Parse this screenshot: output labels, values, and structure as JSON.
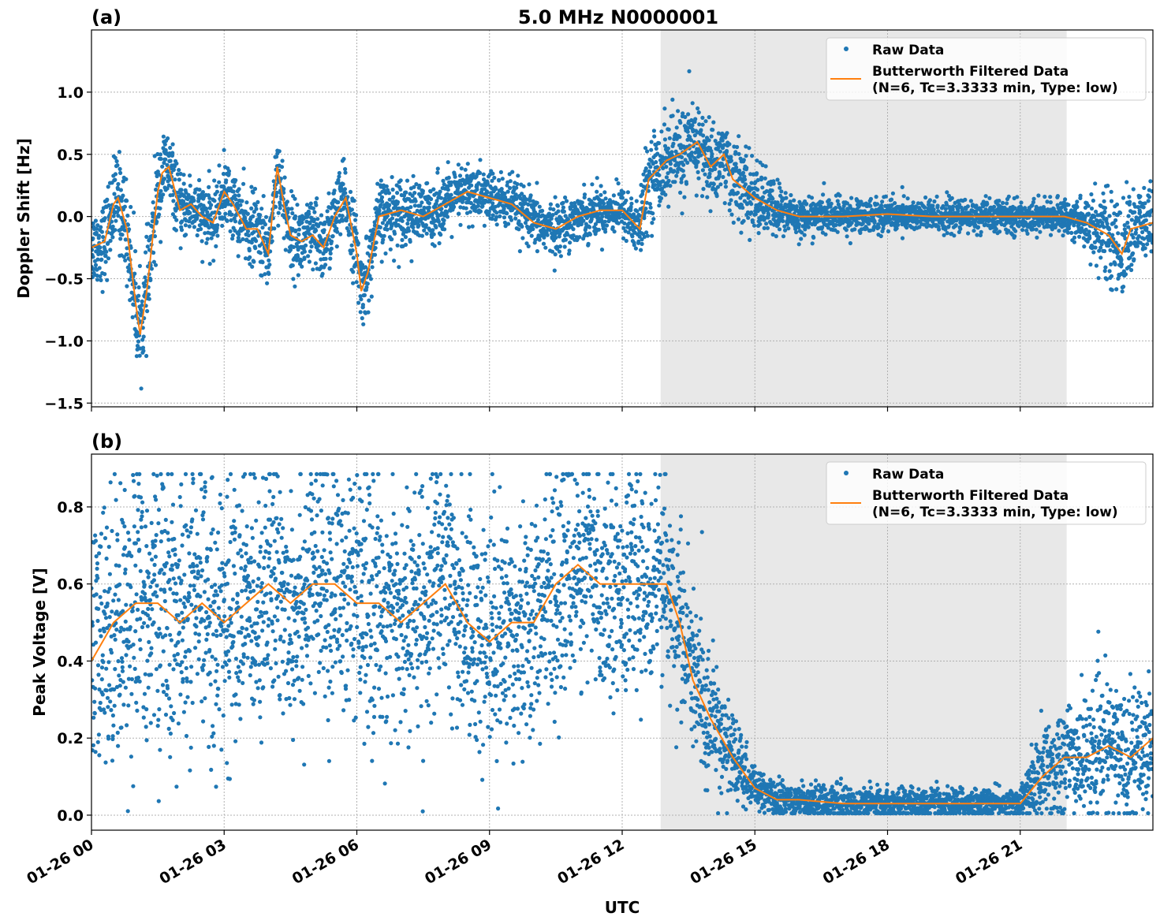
{
  "title": "5.0 MHz N0000001",
  "xlabel": "UTC",
  "x_ticks": [
    "01-26 00",
    "01-26 03",
    "01-26 06",
    "01-26 09",
    "01-26 12",
    "01-26 15",
    "01-26 18",
    "01-26 21"
  ],
  "x_tick_hours": [
    0,
    3,
    6,
    9,
    12,
    15,
    18,
    21
  ],
  "xlim_hours": [
    0,
    24
  ],
  "shaded_region_hours": [
    12.87,
    22.05
  ],
  "colors": {
    "raw": "#1f77b4",
    "filtered": "#ff7f0e",
    "shade": "#e8e8e8"
  },
  "chart_data": [
    {
      "type": "scatter+line",
      "panel_label": "(a)",
      "ylabel": "Doppler Shift [Hz]",
      "ylim": [
        -1.53,
        1.5
      ],
      "y_ticks": [
        1.0,
        0.5,
        0.0,
        -0.5,
        -1.0,
        -1.5
      ],
      "y_tick_labels": [
        "1.0",
        "0.5",
        "0.0",
        "−0.5",
        "−1.0",
        "−1.5"
      ],
      "grid": true,
      "legend": {
        "placement": "top-right",
        "entries": [
          "Raw Data",
          "Butterworth Filtered Data",
          "(N=6, Tc=3.3333 min, Type: low)"
        ]
      },
      "filtered": {
        "x_hours": [
          0,
          0.3,
          0.5,
          0.6,
          0.8,
          1.0,
          1.1,
          1.25,
          1.5,
          1.6,
          1.75,
          2.0,
          2.25,
          2.5,
          2.75,
          3.0,
          3.2,
          3.5,
          3.75,
          4.0,
          4.2,
          4.35,
          4.5,
          4.75,
          5.0,
          5.25,
          5.5,
          5.75,
          6.0,
          6.1,
          6.25,
          6.5,
          7.0,
          7.5,
          8.0,
          8.5,
          9.0,
          9.5,
          10.0,
          10.5,
          11.0,
          11.5,
          12.0,
          12.4,
          12.6,
          13.0,
          13.3,
          13.7,
          14.0,
          14.3,
          14.5,
          15.0,
          15.5,
          16,
          17,
          18,
          19,
          20,
          21,
          22,
          22.5,
          23,
          23.3,
          23.5,
          24
        ],
        "y": [
          -0.25,
          -0.2,
          0.1,
          0.15,
          -0.1,
          -0.7,
          -0.95,
          -0.6,
          0.2,
          0.35,
          0.4,
          0.05,
          0.1,
          0.0,
          -0.05,
          0.2,
          0.1,
          -0.1,
          -0.1,
          -0.3,
          0.4,
          0.1,
          -0.15,
          -0.2,
          -0.15,
          -0.25,
          0.0,
          0.15,
          -0.3,
          -0.6,
          -0.45,
          0.0,
          0.05,
          0.0,
          0.1,
          0.2,
          0.15,
          0.1,
          -0.05,
          -0.1,
          0.0,
          0.05,
          0.05,
          -0.1,
          0.3,
          0.45,
          0.5,
          0.6,
          0.4,
          0.5,
          0.3,
          0.15,
          0.05,
          0.0,
          0.0,
          0.02,
          0.0,
          0.0,
          0.0,
          0.0,
          -0.05,
          -0.15,
          -0.3,
          -0.1,
          -0.05
        ]
      },
      "raw_spread": {
        "x_hours": [
          0,
          1,
          1.5,
          2,
          4,
          6,
          8,
          12,
          12.5,
          13,
          15,
          16,
          22,
          22.5,
          23,
          24
        ],
        "half_width": [
          0.25,
          0.35,
          0.3,
          0.2,
          0.25,
          0.25,
          0.2,
          0.15,
          0.25,
          0.3,
          0.25,
          0.12,
          0.1,
          0.2,
          0.3,
          0.25
        ]
      }
    },
    {
      "type": "scatter+line",
      "panel_label": "(b)",
      "ylabel": "Peak Voltage [V]",
      "ylim": [
        -0.039,
        0.937
      ],
      "y_ticks": [
        0.8,
        0.6,
        0.4,
        0.2,
        0.0
      ],
      "y_tick_labels": [
        "0.8",
        "0.6",
        "0.4",
        "0.2",
        "0.0"
      ],
      "grid": true,
      "legend": {
        "placement": "top-right",
        "entries": [
          "Raw Data",
          "Butterworth Filtered Data",
          "(N=6, Tc=3.3333 min, Type: low)"
        ]
      },
      "filtered": {
        "x_hours": [
          0,
          0.5,
          1,
          1.5,
          2,
          2.5,
          3,
          3.5,
          4,
          4.5,
          5,
          5.5,
          6,
          6.5,
          7,
          7.5,
          8,
          8.5,
          9,
          9.5,
          10,
          10.5,
          11,
          11.5,
          12,
          12.5,
          13,
          13.3,
          13.6,
          14,
          14.5,
          15,
          15.5,
          16,
          17,
          18,
          19,
          20,
          21,
          21.5,
          22,
          22.5,
          23,
          23.5,
          24
        ],
        "y": [
          0.4,
          0.5,
          0.55,
          0.55,
          0.5,
          0.55,
          0.5,
          0.55,
          0.6,
          0.55,
          0.6,
          0.6,
          0.55,
          0.55,
          0.5,
          0.55,
          0.6,
          0.5,
          0.45,
          0.5,
          0.5,
          0.6,
          0.65,
          0.6,
          0.6,
          0.6,
          0.6,
          0.5,
          0.35,
          0.25,
          0.15,
          0.07,
          0.04,
          0.04,
          0.03,
          0.03,
          0.03,
          0.03,
          0.03,
          0.1,
          0.15,
          0.15,
          0.18,
          0.15,
          0.2
        ]
      },
      "raw_spread": {
        "x_hours": [
          0,
          10.5,
          12.9,
          13.5,
          14.5,
          15,
          21,
          21.5,
          24
        ],
        "half_width": [
          0.3,
          0.25,
          0.2,
          0.2,
          0.1,
          0.04,
          0.03,
          0.12,
          0.15
        ]
      }
    }
  ]
}
